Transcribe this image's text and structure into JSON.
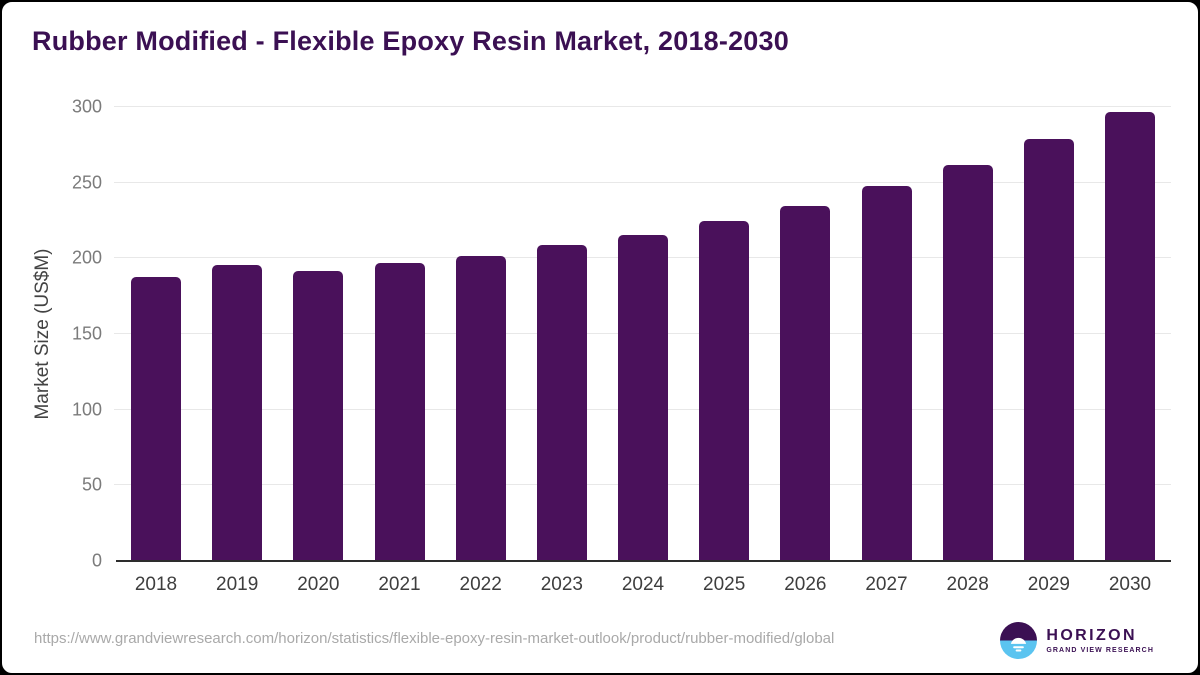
{
  "title": "Rubber Modified - Flexible Epoxy Resin Market, 2018-2030",
  "chart_data": {
    "type": "bar",
    "categories": [
      "2018",
      "2019",
      "2020",
      "2021",
      "2022",
      "2023",
      "2024",
      "2025",
      "2026",
      "2027",
      "2028",
      "2029",
      "2030"
    ],
    "values": [
      187,
      195,
      191,
      196,
      201,
      208,
      215,
      224,
      234,
      247,
      261,
      278,
      296
    ],
    "title": "Rubber Modified - Flexible Epoxy Resin Market, 2018-2030",
    "xlabel": "",
    "ylabel": "Market Size (US$M)",
    "ylim": [
      0,
      300
    ],
    "ytick_step": 50,
    "grid": "horizontal",
    "legend": false,
    "bar_color": "#4a115b"
  },
  "footer": {
    "source_url": "https://www.grandviewresearch.com/horizon/statistics/flexible-epoxy-resin-market-outlook/product/rubber-modified/global",
    "logo": {
      "brand": "HORIZON",
      "subtitle": "GRAND VIEW RESEARCH",
      "icon": "horizon-sun-circle-icon"
    }
  },
  "colors": {
    "title": "#3b1053",
    "bar": "#4a115b",
    "gridline": "#e8e8e8",
    "axis_line": "#2d2d2d",
    "y_tick_text": "#7b7b7b",
    "x_tick_text": "#3e3e3e",
    "source_text": "#a9a9a9",
    "logo_purple": "#3b1053",
    "logo_blue": "#5bc4f0"
  }
}
